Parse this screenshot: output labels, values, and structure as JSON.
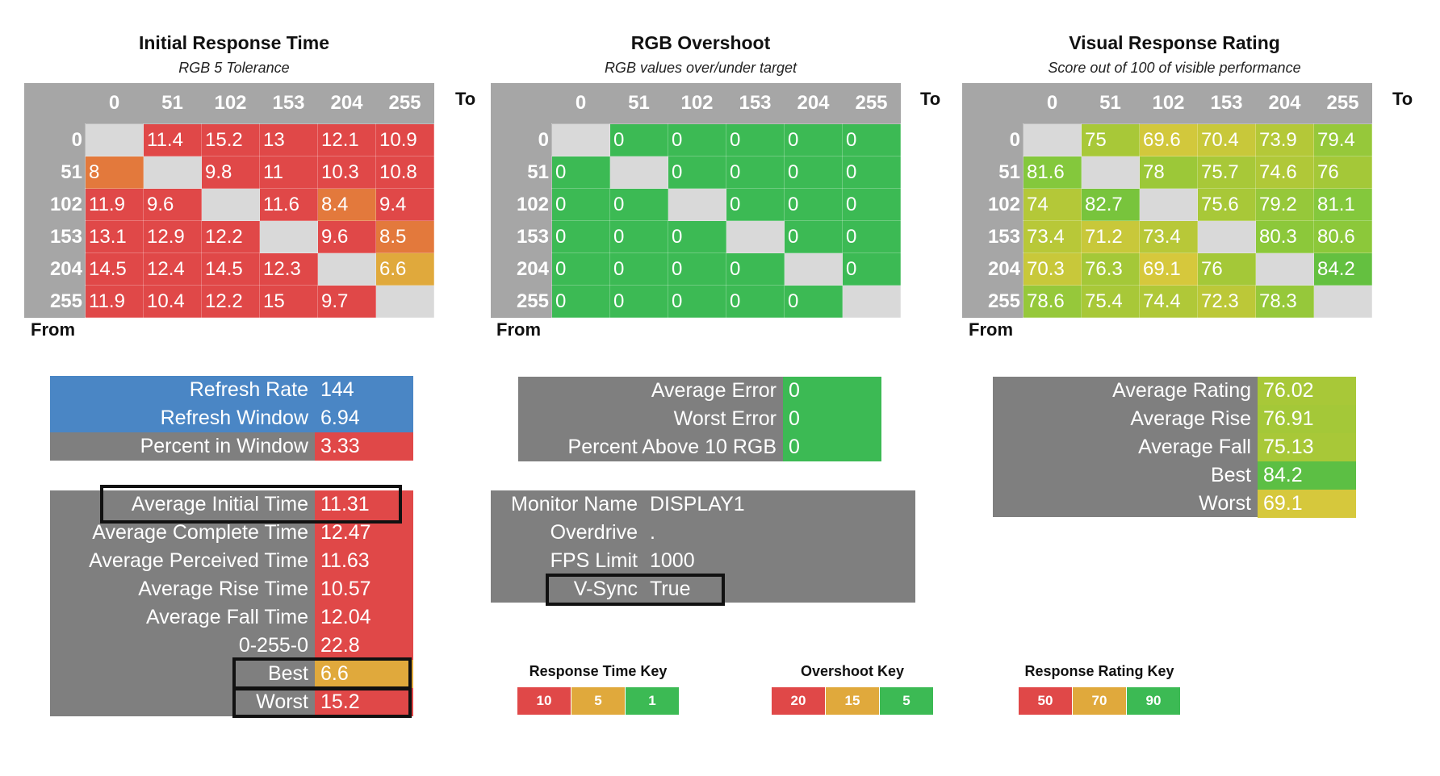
{
  "chart_data": [
    {
      "type": "heatmap",
      "title": "Initial Response Time",
      "subtitle": "RGB 5 Tolerance",
      "xlabel": "To",
      "ylabel": "From",
      "columns": [
        "0",
        "51",
        "102",
        "153",
        "204",
        "255"
      ],
      "rows": [
        "0",
        "51",
        "102",
        "153",
        "204",
        "255"
      ],
      "values": [
        [
          null,
          11.4,
          15.2,
          13,
          12.1,
          10.9
        ],
        [
          8,
          null,
          9.8,
          11,
          10.3,
          10.8
        ],
        [
          11.9,
          9.6,
          null,
          11.6,
          8.4,
          9.4
        ],
        [
          13.1,
          12.9,
          12.2,
          null,
          9.6,
          8.5
        ],
        [
          14.5,
          12.4,
          14.5,
          12.3,
          null,
          6.6
        ],
        [
          11.9,
          10.4,
          12.2,
          15,
          9.7,
          null
        ]
      ],
      "colors": [
        [
          null,
          "#e04848",
          "#e04848",
          "#e04848",
          "#e04848",
          "#e04848"
        ],
        [
          "#e3793c",
          null,
          "#e04848",
          "#e04848",
          "#e04848",
          "#e04848"
        ],
        [
          "#e04848",
          "#e04848",
          null,
          "#e04848",
          "#e3793c",
          "#e04848"
        ],
        [
          "#e04848",
          "#e04848",
          "#e04848",
          null,
          "#e04848",
          "#e3793c"
        ],
        [
          "#e04848",
          "#e04848",
          "#e04848",
          "#e04848",
          null,
          "#e0a93c"
        ],
        [
          "#e04848",
          "#e04848",
          "#e04848",
          "#e04848",
          "#e04848",
          null
        ]
      ]
    },
    {
      "type": "heatmap",
      "title": "RGB Overshoot",
      "subtitle": "RGB values over/under target",
      "xlabel": "To",
      "ylabel": "From",
      "columns": [
        "0",
        "51",
        "102",
        "153",
        "204",
        "255"
      ],
      "rows": [
        "0",
        "51",
        "102",
        "153",
        "204",
        "255"
      ],
      "values": [
        [
          null,
          0,
          0,
          0,
          0,
          0
        ],
        [
          0,
          null,
          0,
          0,
          0,
          0
        ],
        [
          0,
          0,
          null,
          0,
          0,
          0
        ],
        [
          0,
          0,
          0,
          null,
          0,
          0
        ],
        [
          0,
          0,
          0,
          0,
          null,
          0
        ],
        [
          0,
          0,
          0,
          0,
          0,
          null
        ]
      ],
      "colors": [
        [
          null,
          "#3cba54",
          "#3cba54",
          "#3cba54",
          "#3cba54",
          "#3cba54"
        ],
        [
          "#3cba54",
          null,
          "#3cba54",
          "#3cba54",
          "#3cba54",
          "#3cba54"
        ],
        [
          "#3cba54",
          "#3cba54",
          null,
          "#3cba54",
          "#3cba54",
          "#3cba54"
        ],
        [
          "#3cba54",
          "#3cba54",
          "#3cba54",
          null,
          "#3cba54",
          "#3cba54"
        ],
        [
          "#3cba54",
          "#3cba54",
          "#3cba54",
          "#3cba54",
          null,
          "#3cba54"
        ],
        [
          "#3cba54",
          "#3cba54",
          "#3cba54",
          "#3cba54",
          "#3cba54",
          null
        ]
      ]
    },
    {
      "type": "heatmap",
      "title": "Visual Response Rating",
      "subtitle": "Score out of 100 of visible performance",
      "xlabel": "To",
      "ylabel": "From",
      "columns": [
        "0",
        "51",
        "102",
        "153",
        "204",
        "255"
      ],
      "rows": [
        "0",
        "51",
        "102",
        "153",
        "204",
        "255"
      ],
      "values": [
        [
          null,
          75,
          69.6,
          70.4,
          73.9,
          79.4
        ],
        [
          81.6,
          null,
          78,
          75.7,
          74.6,
          76
        ],
        [
          74,
          82.7,
          null,
          75.6,
          79.2,
          81.1
        ],
        [
          73.4,
          71.2,
          73.4,
          null,
          80.3,
          80.6
        ],
        [
          70.3,
          76.3,
          69.1,
          76,
          null,
          84.2
        ],
        [
          78.6,
          75.4,
          74.4,
          72.3,
          78.3,
          null
        ]
      ],
      "colors": [
        [
          null,
          "#a8c838",
          "#d2c83c",
          "#c8c83a",
          "#b4c838",
          "#96c83a"
        ],
        [
          "#84c83c",
          null,
          "#9cc838",
          "#a8c838",
          "#b0c838",
          "#a4c838"
        ],
        [
          "#b4c838",
          "#78c43c",
          null,
          "#a8c838",
          "#96c83a",
          "#84c83c"
        ],
        [
          "#b8c838",
          "#c8c83a",
          "#b8c838",
          null,
          "#8cc83a",
          "#8cc83a"
        ],
        [
          "#c8c83a",
          "#a4c838",
          "#d6c83c",
          "#a4c838",
          null,
          "#64c040"
        ],
        [
          "#96c83a",
          "#a8c838",
          "#b0c838",
          "#bcc838",
          "#96c83a",
          null
        ]
      ]
    }
  ],
  "stats_refresh": {
    "rows": [
      {
        "label": "Refresh Rate",
        "value": "144",
        "label_color": "#4a86c5",
        "value_color": "#4a86c5"
      },
      {
        "label": "Refresh Window",
        "value": "6.94",
        "label_color": "#4a86c5",
        "value_color": "#4a86c5"
      },
      {
        "label": "Percent in Window",
        "value": "3.33",
        "label_color": "#7f7f7f",
        "value_color": "#e04848"
      }
    ]
  },
  "stats_times": {
    "rows": [
      {
        "label": "Average Initial Time",
        "value": "11.31",
        "value_color": "#e04848"
      },
      {
        "label": "Average Complete Time",
        "value": "12.47",
        "value_color": "#e04848"
      },
      {
        "label": "Average Perceived Time",
        "value": "11.63",
        "value_color": "#e04848"
      },
      {
        "label": "Average Rise Time",
        "value": "10.57",
        "value_color": "#e04848"
      },
      {
        "label": "Average Fall Time",
        "value": "12.04",
        "value_color": "#e04848"
      },
      {
        "label": "0-255-0",
        "value": "22.8",
        "value_color": "#e04848"
      },
      {
        "label": "Best",
        "value": "6.6",
        "value_color": "#e0a93c"
      },
      {
        "label": "Worst",
        "value": "15.2",
        "value_color": "#e04848"
      }
    ]
  },
  "stats_error": {
    "rows": [
      {
        "label": "Average Error",
        "value": "0",
        "value_color": "#3cba54"
      },
      {
        "label": "Worst Error",
        "value": "0",
        "value_color": "#3cba54"
      },
      {
        "label": "Percent Above 10 RGB",
        "value": "0",
        "value_color": "#3cba54"
      }
    ]
  },
  "monitor_info": {
    "rows": [
      {
        "label": "Monitor Name",
        "value": "DISPLAY1"
      },
      {
        "label": "Overdrive",
        "value": "."
      },
      {
        "label": "FPS Limit",
        "value": "1000"
      },
      {
        "label": "V-Sync",
        "value": "True"
      }
    ]
  },
  "stats_rating": {
    "rows": [
      {
        "label": "Average Rating",
        "value": "76.02",
        "value_color": "#a8c838"
      },
      {
        "label": "Average Rise",
        "value": "76.91",
        "value_color": "#a4c838"
      },
      {
        "label": "Average Fall",
        "value": "75.13",
        "value_color": "#a8c838"
      },
      {
        "label": "Best",
        "value": "84.2",
        "value_color": "#5cbf44"
      },
      {
        "label": "Worst",
        "value": "69.1",
        "value_color": "#d6c83c"
      }
    ]
  },
  "keys": [
    {
      "title": "Response Time Key",
      "cells": [
        {
          "label": "10",
          "color": "#e04848"
        },
        {
          "label": "5",
          "color": "#e0a93c"
        },
        {
          "label": "1",
          "color": "#3cba54"
        }
      ]
    },
    {
      "title": "Overshoot Key",
      "cells": [
        {
          "label": "20",
          "color": "#e04848"
        },
        {
          "label": "15",
          "color": "#e0a93c"
        },
        {
          "label": "5",
          "color": "#3cba54"
        }
      ]
    },
    {
      "title": "Response Rating Key",
      "cells": [
        {
          "label": "50",
          "color": "#e04848"
        },
        {
          "label": "70",
          "color": "#e0a93c"
        },
        {
          "label": "90",
          "color": "#3cba54"
        }
      ]
    }
  ]
}
